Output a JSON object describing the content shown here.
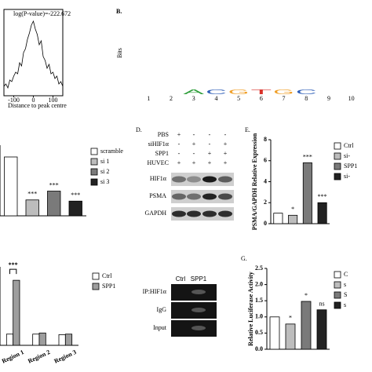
{
  "chart_data": [
    {
      "type": "line",
      "title": "log(P-value)=-222.672",
      "x_label": "Distance to peak centre",
      "color": "#000000",
      "x": [
        -150,
        -140,
        -130,
        -120,
        -110,
        -100,
        -90,
        -80,
        -70,
        -60,
        -50,
        -40,
        -30,
        -20,
        -10,
        0,
        10,
        20,
        30,
        40,
        50,
        60,
        70,
        80,
        90,
        100,
        110,
        120,
        130,
        140,
        150
      ],
      "values": [
        0.12,
        0.15,
        0.1,
        0.2,
        0.18,
        0.25,
        0.3,
        0.28,
        0.42,
        0.38,
        0.55,
        0.6,
        0.72,
        0.8,
        0.9,
        0.95,
        0.85,
        0.78,
        0.65,
        0.7,
        0.5,
        0.45,
        0.35,
        0.4,
        0.28,
        0.3,
        0.22,
        0.25,
        0.15,
        0.18,
        0.12
      ],
      "xlim": [
        -150,
        150
      ],
      "xticks": [
        -100,
        0,
        100
      ],
      "ylim": [
        0,
        1
      ]
    },
    {
      "type": "logo",
      "label": "B.",
      "y_label": "Bits",
      "ylim": [
        0,
        2
      ],
      "positions": [
        1,
        2,
        3,
        4,
        5,
        6,
        7,
        8,
        9,
        10
      ],
      "motif": [
        {
          "pos": 3,
          "letter": "A",
          "bits": 1.9,
          "color": "#2e9e3a"
        },
        {
          "pos": 4,
          "letter": "C",
          "bits": 1.9,
          "color": "#2f5fb8"
        },
        {
          "pos": 5,
          "letter": "G",
          "bits": 1.9,
          "color": "#f0a02a"
        },
        {
          "pos": 6,
          "letter": "T",
          "bits": 1.2,
          "color": "#d9322a"
        },
        {
          "pos": 7,
          "letter": "G",
          "bits": 0.8,
          "color": "#f0a02a"
        },
        {
          "pos": 8,
          "letter": "C",
          "bits": 0.8,
          "color": "#2f5fb8"
        }
      ]
    },
    {
      "type": "bar",
      "ylim": [
        0,
        1.2
      ],
      "series": [
        {
          "name": "scramble",
          "color": "#ffffff",
          "values": [
            1.0
          ]
        },
        {
          "name": "si 1",
          "color": "#bdbdbd",
          "values": [
            0.27
          ],
          "mark": "***"
        },
        {
          "name": "si 2",
          "color": "#7a7a7a",
          "values": [
            0.42
          ],
          "mark": "***"
        },
        {
          "name": "si 3",
          "color": "#222222",
          "values": [
            0.25
          ],
          "mark": "***"
        }
      ]
    },
    {
      "type": "bar",
      "label": "E.",
      "y_label": "PSMA/GAPDH Relative Expression",
      "ylim": [
        0,
        8
      ],
      "yticks": [
        0,
        2,
        4,
        6,
        8
      ],
      "series": [
        {
          "name": "Ctrl",
          "color": "#ffffff",
          "values": [
            1.0
          ]
        },
        {
          "name": "si-",
          "color": "#bdbdbd",
          "values": [
            0.8
          ],
          "mark": "*"
        },
        {
          "name": "SPP1",
          "color": "#7a7a7a",
          "values": [
            5.8
          ],
          "mark": "***"
        },
        {
          "name": "si-",
          "color": "#222222",
          "values": [
            2.0
          ],
          "mark": "***"
        }
      ]
    },
    {
      "type": "grouped",
      "ylim": [
        0,
        7
      ],
      "categories": [
        "Region 1",
        "Region 2",
        "Region 3"
      ],
      "mark": "***",
      "series": [
        {
          "name": "Ctrl",
          "color": "#ffffff",
          "values": [
            1.0,
            1.0,
            0.95
          ]
        },
        {
          "name": "SPP1",
          "color": "#9e9e9e",
          "values": [
            5.8,
            1.1,
            1.0
          ]
        }
      ]
    },
    {
      "type": "bar",
      "label": "G.",
      "y_label": "Relative Luciferase Activity",
      "ylim": [
        0,
        2.5
      ],
      "yticks": [
        {
          "value": 0,
          "label": "0.0"
        },
        0.5,
        {
          "value": 1,
          "label": "1.0"
        },
        1.5,
        {
          "value": 2,
          "label": "2.0"
        },
        2.5
      ],
      "series": [
        {
          "name": "C",
          "color": "#ffffff",
          "values": [
            1.0
          ]
        },
        {
          "name": "s",
          "color": "#bdbdbd",
          "values": [
            0.78
          ],
          "mark": "*"
        },
        {
          "name": "S",
          "color": "#7a7a7a",
          "values": [
            1.48
          ],
          "mark": "*"
        },
        {
          "name": "s",
          "color": "#222222",
          "values": [
            1.22
          ],
          "mark": "ns"
        }
      ]
    }
  ],
  "blot": {
    "label": "D.",
    "conditions": [
      {
        "name": "PBS",
        "signs": [
          "+",
          "-",
          "-",
          "-"
        ]
      },
      {
        "name": "siHIF1α",
        "signs": [
          "-",
          "+",
          "-",
          "+"
        ]
      },
      {
        "name": "SPP1",
        "signs": [
          "-",
          "-",
          "+",
          "+"
        ]
      },
      {
        "name": "HUVEC",
        "signs": [
          "+",
          "+",
          "+",
          "+"
        ]
      }
    ],
    "bands": [
      "HIF1α",
      "PSMA",
      "GAPDH"
    ]
  },
  "gel": {
    "lanes": [
      "Ctrl",
      "SPP1"
    ],
    "rows": [
      "IP:HIF1α",
      "IgG",
      "Input"
    ]
  }
}
